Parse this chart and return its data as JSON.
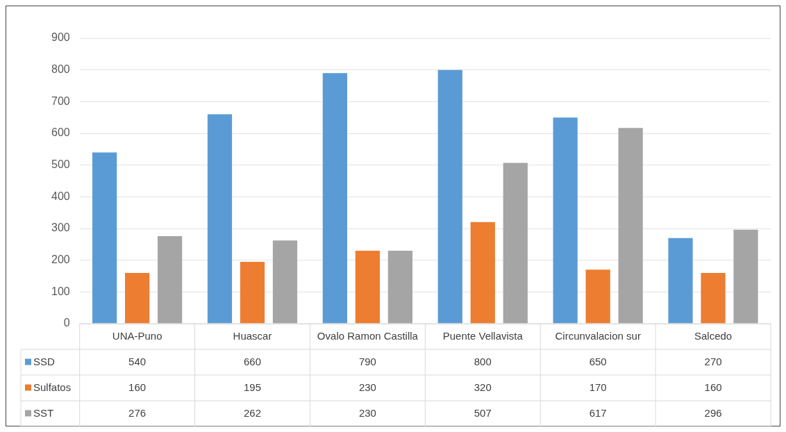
{
  "chart_data": {
    "type": "bar",
    "categories": [
      "UNA-Puno",
      "Huascar",
      "Ovalo Ramon Castilla",
      "Puente Vellavista",
      "Circunvalacion sur",
      "Salcedo"
    ],
    "series": [
      {
        "name": "SSD",
        "color": "#5b9bd5",
        "values": [
          540,
          660,
          790,
          800,
          650,
          270
        ]
      },
      {
        "name": "Sulfatos",
        "color": "#ed7d31",
        "values": [
          160,
          195,
          230,
          320,
          170,
          160
        ]
      },
      {
        "name": "SST",
        "color": "#a5a5a5",
        "values": [
          276,
          262,
          230,
          507,
          617,
          296
        ]
      }
    ],
    "ylim": [
      0,
      900
    ],
    "yticks": [
      0,
      100,
      200,
      300,
      400,
      500,
      600,
      700,
      800,
      900
    ],
    "grid": "y",
    "legend": "bottom",
    "data_labels": true
  }
}
